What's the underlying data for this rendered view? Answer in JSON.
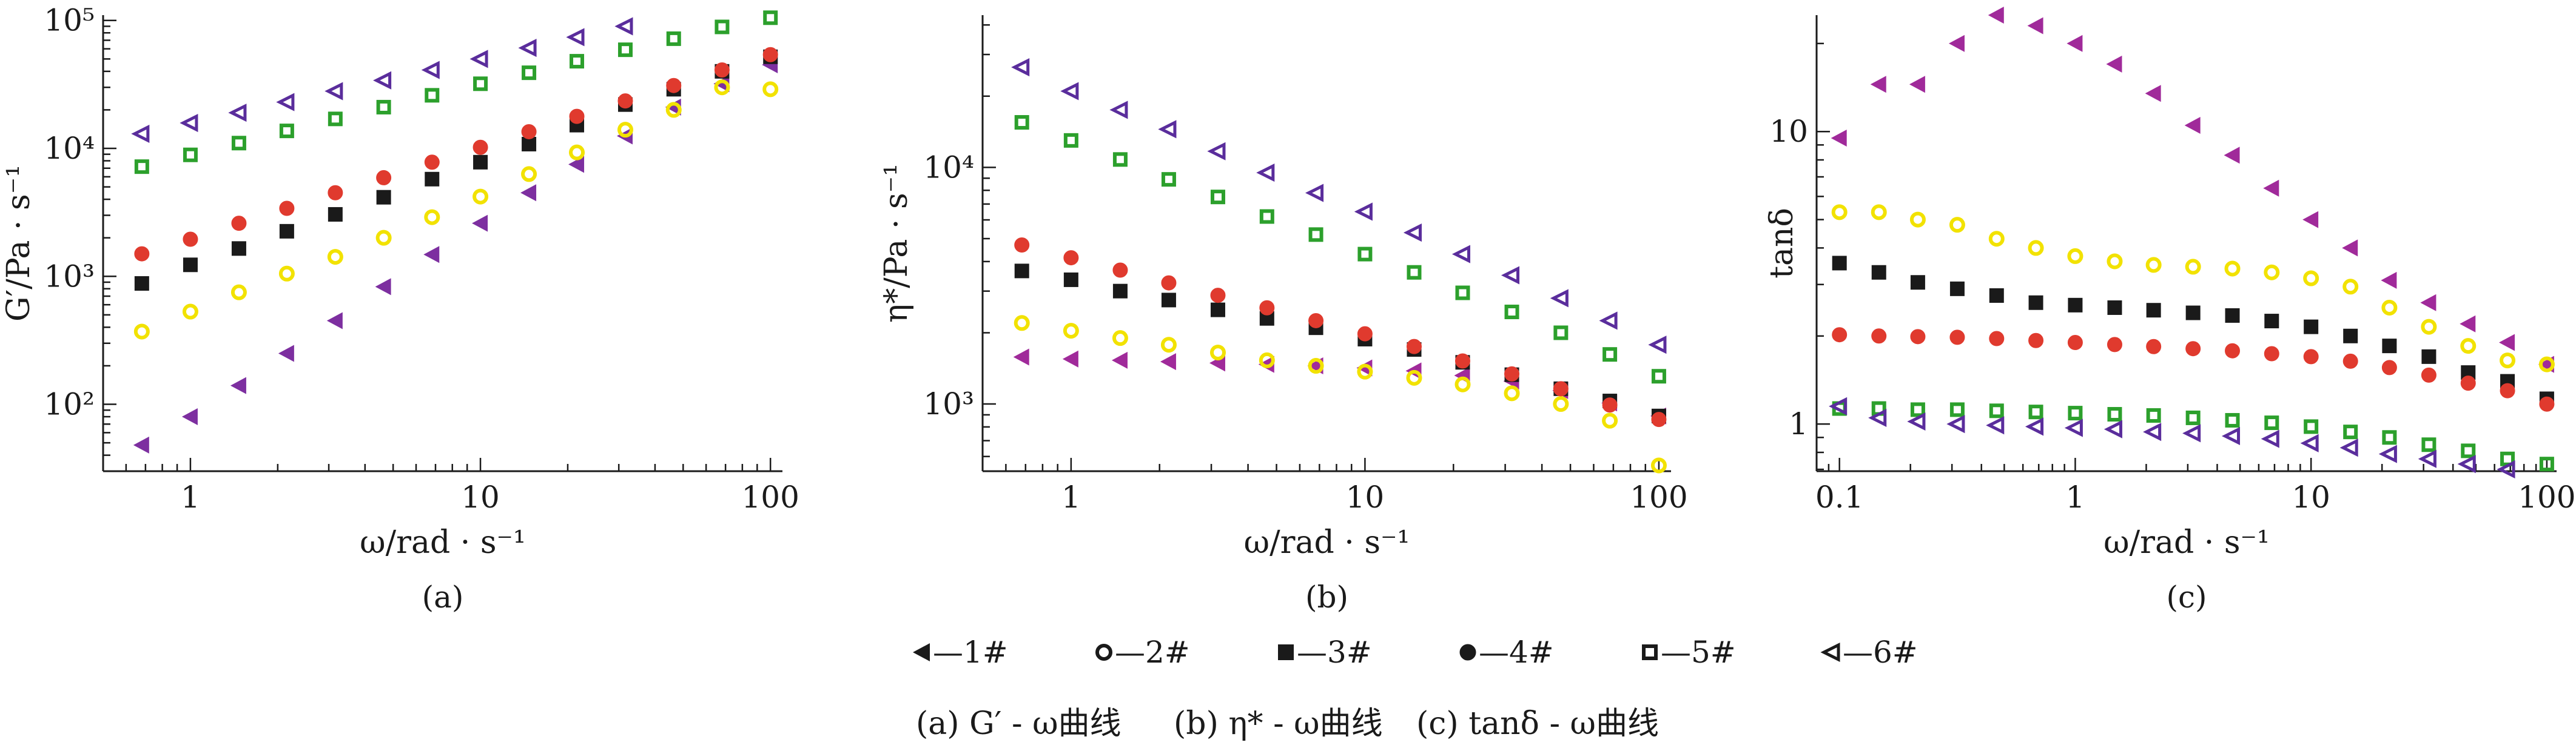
{
  "chart_data": [
    {
      "id": "a",
      "type": "scatter",
      "panel_label": "(a)",
      "xlabel": "ω/rad · s⁻¹",
      "ylabel": "G′/Pa · s⁻¹",
      "xscale": "log",
      "yscale": "log",
      "xlim": [
        0.5,
        110
      ],
      "ylim": [
        30,
        110000
      ],
      "xticks": [
        {
          "v": 1,
          "label": "1"
        },
        {
          "v": 10,
          "label": "10"
        },
        {
          "v": 100,
          "label": "100"
        }
      ],
      "yticks": [
        {
          "v": 100,
          "label": "10²"
        },
        {
          "v": 1000,
          "label": "10³"
        },
        {
          "v": 10000,
          "label": "10⁴"
        },
        {
          "v": 100000,
          "label": "10⁵"
        }
      ],
      "x": [
        0.68,
        1,
        1.47,
        2.15,
        3.16,
        4.64,
        6.81,
        10,
        14.7,
        21.5,
        31.6,
        46.4,
        68.1,
        100
      ],
      "series": [
        {
          "name": "1#",
          "marker": "tri-left-filled",
          "color": "#7d2fa0",
          "y": [
            48,
            80,
            140,
            250,
            450,
            830,
            1480,
            2600,
            4500,
            7500,
            12500,
            21000,
            32000,
            45000
          ]
        },
        {
          "name": "2#",
          "marker": "circle-open",
          "color": "#f2e200",
          "y": [
            370,
            530,
            750,
            1050,
            1420,
            2000,
            2900,
            4200,
            6300,
            9300,
            14000,
            20000,
            30000,
            29000
          ]
        },
        {
          "name": "3#",
          "marker": "square-filled",
          "color": "#1a1a1a",
          "y": [
            880,
            1230,
            1650,
            2250,
            3050,
            4150,
            5750,
            7800,
            10800,
            15200,
            22000,
            29000,
            40000,
            52000
          ]
        },
        {
          "name": "4#",
          "marker": "circle-filled",
          "color": "#e03a2e",
          "y": [
            1500,
            1950,
            2600,
            3400,
            4500,
            5900,
            7800,
            10200,
            13500,
            17800,
            23500,
            31000,
            41000,
            54000
          ]
        },
        {
          "name": "5#",
          "marker": "square-open",
          "color": "#2ca02c",
          "y": [
            7200,
            8900,
            11000,
            13700,
            17000,
            21000,
            26000,
            32000,
            39000,
            48000,
            59000,
            72000,
            89000,
            105000
          ]
        },
        {
          "name": "6#",
          "marker": "tri-left-open",
          "color": "#5a2d9c",
          "y": [
            13000,
            15800,
            19000,
            23000,
            28000,
            34000,
            41000,
            50000,
            61000,
            74000,
            90000,
            null,
            null,
            null
          ]
        }
      ]
    },
    {
      "id": "b",
      "type": "scatter",
      "panel_label": "(b)",
      "xlabel": "ω/rad · s⁻¹",
      "ylabel": "η*/Pa · s⁻¹",
      "xscale": "log",
      "yscale": "log",
      "xlim": [
        0.5,
        110
      ],
      "ylim": [
        520,
        44000
      ],
      "xticks": [
        {
          "v": 1,
          "label": "1"
        },
        {
          "v": 10,
          "label": "10"
        },
        {
          "v": 100,
          "label": "100"
        }
      ],
      "yticks": [
        {
          "v": 1000,
          "label": "10³"
        },
        {
          "v": 10000,
          "label": "10⁴"
        }
      ],
      "x": [
        0.68,
        1,
        1.47,
        2.15,
        3.16,
        4.64,
        6.81,
        10,
        14.7,
        21.5,
        31.6,
        46.4,
        68.1,
        100
      ],
      "series": [
        {
          "name": "1#",
          "marker": "tri-left-filled",
          "color": "#a02a9a",
          "y": [
            1580,
            1550,
            1530,
            1510,
            1490,
            1470,
            1450,
            1420,
            1380,
            1320,
            1250,
            1140,
            1010,
            890
          ]
        },
        {
          "name": "2#",
          "marker": "circle-open",
          "color": "#f2e200",
          "y": [
            2200,
            2040,
            1900,
            1780,
            1650,
            1530,
            1450,
            1370,
            1290,
            1210,
            1110,
            1000,
            850,
            550
          ]
        },
        {
          "name": "3#",
          "marker": "square-filled",
          "color": "#1a1a1a",
          "y": [
            3650,
            3350,
            3000,
            2750,
            2500,
            2300,
            2100,
            1880,
            1700,
            1500,
            1330,
            1160,
            1030,
            890
          ]
        },
        {
          "name": "4#",
          "marker": "circle-filled",
          "color": "#e03a2e",
          "y": [
            4700,
            4150,
            3680,
            3250,
            2880,
            2550,
            2250,
            1980,
            1750,
            1520,
            1340,
            1160,
            990,
            860
          ]
        },
        {
          "name": "5#",
          "marker": "square-open",
          "color": "#2ca02c",
          "y": [
            15500,
            13000,
            10800,
            8900,
            7500,
            6200,
            5200,
            4300,
            3600,
            2950,
            2450,
            2000,
            1620,
            1310
          ]
        },
        {
          "name": "6#",
          "marker": "tri-left-open",
          "color": "#5a2d9c",
          "y": [
            26500,
            21000,
            17500,
            14500,
            11700,
            9500,
            7800,
            6500,
            5300,
            4300,
            3500,
            2800,
            2250,
            1780
          ]
        }
      ]
    },
    {
      "id": "c",
      "type": "scatter",
      "panel_label": "(c)",
      "xlabel": "ω/rad · s⁻¹",
      "ylabel": "tanδ",
      "xscale": "log",
      "yscale": "log",
      "xlim": [
        0.08,
        110
      ],
      "ylim": [
        0.69,
        25
      ],
      "xticks": [
        {
          "v": 0.1,
          "label": "0.1"
        },
        {
          "v": 1,
          "label": "1"
        },
        {
          "v": 10,
          "label": "10"
        },
        {
          "v": 100,
          "label": "100"
        }
      ],
      "yticks": [
        {
          "v": 1,
          "label": "1"
        },
        {
          "v": 10,
          "label": "10"
        }
      ],
      "x": [
        0.1,
        0.147,
        0.215,
        0.316,
        0.464,
        0.681,
        1,
        1.47,
        2.15,
        3.16,
        4.64,
        6.81,
        10,
        14.7,
        21.5,
        31.6,
        46.4,
        68.1,
        100
      ],
      "series": [
        {
          "name": "1#",
          "marker": "tri-left-filled",
          "color": "#a02a9a",
          "y": [
            9.5,
            14.5,
            14.5,
            20,
            25,
            23,
            20,
            17,
            13.5,
            10.5,
            8.3,
            6.4,
            5.0,
            4.0,
            3.1,
            2.6,
            2.2,
            1.9,
            1.6
          ]
        },
        {
          "name": "2#",
          "marker": "circle-open",
          "color": "#f2e200",
          "y": [
            5.3,
            5.3,
            5.0,
            4.8,
            4.3,
            4.0,
            3.75,
            3.6,
            3.5,
            3.45,
            3.4,
            3.3,
            3.15,
            2.95,
            2.5,
            2.15,
            1.85,
            1.65,
            1.6
          ]
        },
        {
          "name": "3#",
          "marker": "square-filled",
          "color": "#1a1a1a",
          "y": [
            3.55,
            3.3,
            3.05,
            2.9,
            2.75,
            2.6,
            2.55,
            2.5,
            2.45,
            2.4,
            2.35,
            2.25,
            2.15,
            2.0,
            1.85,
            1.7,
            1.5,
            1.4,
            1.22
          ]
        },
        {
          "name": "4#",
          "marker": "circle-filled",
          "color": "#e03a2e",
          "y": [
            2.02,
            2.0,
            1.99,
            1.98,
            1.96,
            1.93,
            1.9,
            1.87,
            1.84,
            1.81,
            1.78,
            1.74,
            1.7,
            1.64,
            1.56,
            1.47,
            1.38,
            1.3,
            1.17
          ]
        },
        {
          "name": "5#",
          "marker": "square-open",
          "color": "#2ca02c",
          "y": [
            1.13,
            1.13,
            1.12,
            1.12,
            1.11,
            1.1,
            1.09,
            1.08,
            1.07,
            1.05,
            1.03,
            1.01,
            0.98,
            0.94,
            0.9,
            0.85,
            0.81,
            0.76,
            0.73
          ]
        },
        {
          "name": "6#",
          "marker": "tri-left-open",
          "color": "#5a2d9c",
          "y": [
            1.15,
            1.05,
            1.02,
            1.0,
            0.99,
            0.98,
            0.97,
            0.96,
            0.94,
            0.93,
            0.91,
            0.89,
            0.86,
            0.83,
            0.79,
            0.76,
            0.73,
            0.7,
            null
          ]
        }
      ]
    }
  ],
  "legend": {
    "placement": "bottom-center",
    "items": [
      {
        "label": "—1#",
        "marker": "tri-left-filled"
      },
      {
        "label": "—2#",
        "marker": "circle-open"
      },
      {
        "label": "—3#",
        "marker": "square-filled"
      },
      {
        "label": "—4#",
        "marker": "circle-filled"
      },
      {
        "label": "—5#",
        "marker": "square-open"
      },
      {
        "label": "—6#",
        "marker": "tri-left-open"
      }
    ]
  },
  "caption": [
    {
      "text": "(a) G′ - ω曲线"
    },
    {
      "text": "(b) η* - ω曲线"
    },
    {
      "text": "(c) tanδ - ω曲线"
    }
  ]
}
